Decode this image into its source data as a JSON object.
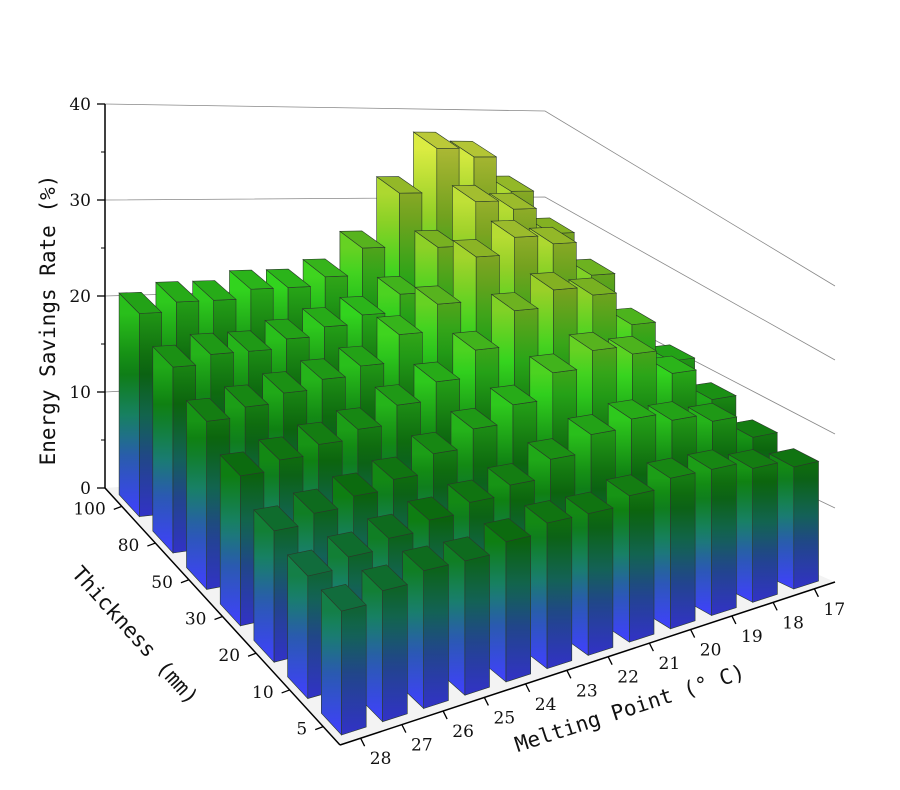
{
  "chart_data": {
    "type": "bar3d",
    "title": "",
    "zlabel": "Energy Savings Rate (%)",
    "ylabel": "Thickness (mm)",
    "xlabel": "Melting Point (° C)",
    "zlim": [
      0,
      40
    ],
    "zticks": [
      "0",
      "10",
      "20",
      "30",
      "40"
    ],
    "thickness": [
      "100",
      "80",
      "50",
      "30",
      "20",
      "10",
      "5"
    ],
    "melting_point": [
      "28",
      "27",
      "26",
      "25",
      "24",
      "23",
      "22",
      "21",
      "20",
      "19",
      "18",
      "17"
    ],
    "values": [
      [
        21,
        22,
        22,
        23,
        23,
        24,
        27,
        33,
        38,
        37,
        33,
        25
      ],
      [
        19,
        20,
        20,
        21,
        22,
        23,
        25,
        30,
        35,
        34,
        31,
        24
      ],
      [
        17,
        18,
        19,
        20,
        21,
        24,
        27,
        32,
        34,
        33,
        29,
        22
      ],
      [
        15,
        16,
        17,
        18,
        20,
        22,
        25,
        29,
        31,
        30,
        26,
        21
      ],
      [
        13,
        14,
        15,
        16,
        18,
        20,
        22,
        25,
        27,
        26,
        23,
        19
      ],
      [
        12,
        13,
        14,
        15,
        16,
        17,
        19,
        21,
        22,
        21,
        20,
        17
      ],
      [
        12,
        13,
        14,
        14,
        15,
        16,
        16,
        17,
        18,
        18,
        17,
        16
      ]
    ],
    "colormap": [
      "#4040ff",
      "#2a5ab0",
      "#18806a",
      "#0e7e12",
      "#32d41e",
      "#9ad028",
      "#eef44a"
    ],
    "grid": true
  }
}
